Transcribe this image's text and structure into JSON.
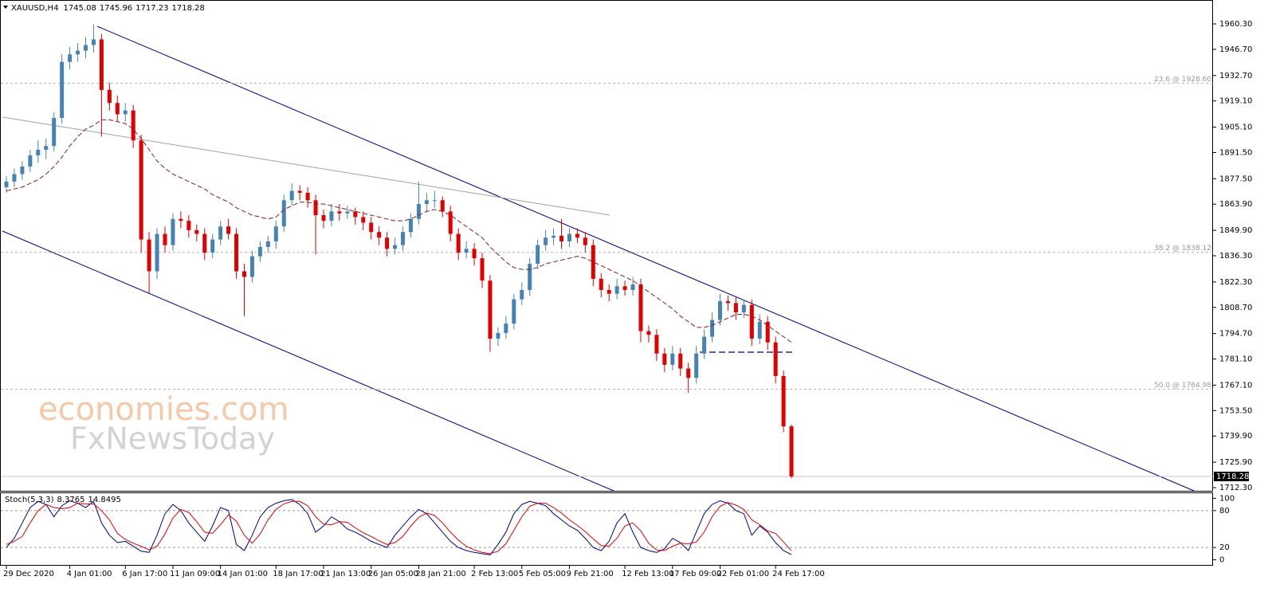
{
  "chart_data": {
    "type": "candlestick",
    "symbol": "XAUUSD,H4",
    "bull_color": "#4682b4",
    "bear_color": "#e00000",
    "categories": [
      "29 Dec 2020",
      null,
      null,
      null,
      null,
      null,
      null,
      null,
      "4 Jan 01:00",
      null,
      null,
      null,
      null,
      null,
      null,
      "6 Jan 17:00",
      null,
      null,
      null,
      null,
      null,
      "11 Jan 09:00",
      null,
      null,
      null,
      null,
      null,
      "14 Jan 01:00",
      null,
      null,
      null,
      null,
      null,
      null,
      "18 Jan 17:00",
      null,
      null,
      null,
      null,
      null,
      "21 Jan 13:00",
      null,
      null,
      null,
      null,
      null,
      "26 Jan 05:00",
      null,
      null,
      null,
      null,
      null,
      "28 Jan 21:00",
      null,
      null,
      null,
      null,
      null,
      null,
      "2 Feb 13:00",
      null,
      null,
      null,
      null,
      null,
      "5 Feb 05:00",
      null,
      null,
      null,
      null,
      null,
      "9 Feb 21:00",
      null,
      null,
      null,
      null,
      null,
      null,
      "12 Feb 13:00",
      null,
      null,
      null,
      null,
      null,
      "17 Feb 09:00",
      null,
      null,
      null,
      null,
      null,
      "22 Feb 01:00",
      null,
      null,
      null,
      null,
      null,
      null,
      "24 Feb 17:00",
      null,
      null
    ],
    "open": [
      1873,
      1876,
      1880,
      1884,
      1890,
      1893,
      1895,
      1910,
      1940,
      1944,
      1946,
      1949,
      1952,
      1925,
      1918,
      1912,
      1914,
      1898,
      1845,
      1828,
      1848,
      1842,
      1856,
      1855,
      1850,
      1848,
      1838,
      1845,
      1852,
      1848,
      1828,
      1825,
      1836,
      1841,
      1844,
      1852,
      1866,
      1871,
      1870,
      1866,
      1858,
      1855,
      1860,
      1859,
      1860,
      1857,
      1854,
      1849,
      1846,
      1840,
      1842,
      1849,
      1856,
      1864,
      1866,
      1866,
      1860,
      1848,
      1838,
      1840,
      1835,
      1823,
      1792,
      1795,
      1800,
      1813,
      1818,
      1832,
      1842,
      1846,
      1847,
      1844,
      1848,
      1846,
      1842,
      1824,
      1818,
      1816,
      1820,
      1818,
      1821,
      1796,
      1794,
      1784,
      1778,
      1784,
      1776,
      1771,
      1784,
      1793,
      1802,
      1812,
      1811,
      1806,
      1810,
      1792,
      1801,
      1790,
      1772,
      1745.08
    ],
    "high": [
      1879,
      1883,
      1887,
      1893,
      1898,
      1899,
      1913,
      1944,
      1948,
      1950,
      1953,
      1960,
      1955,
      1929,
      1922,
      1918,
      1917,
      1901,
      1849,
      1851,
      1852,
      1859,
      1860,
      1858,
      1853,
      1851,
      1848,
      1855,
      1856,
      1851,
      1832,
      1839,
      1844,
      1847,
      1855,
      1869,
      1875,
      1874,
      1873,
      1869,
      1861,
      1864,
      1864,
      1863,
      1862,
      1860,
      1857,
      1852,
      1849,
      1846,
      1852,
      1859,
      1876,
      1870,
      1871,
      1868,
      1863,
      1851,
      1844,
      1843,
      1838,
      1826,
      1798,
      1804,
      1816,
      1822,
      1835,
      1845,
      1850,
      1851,
      1856,
      1851,
      1851,
      1849,
      1845,
      1827,
      1821,
      1824,
      1823,
      1825,
      1824,
      1799,
      1797,
      1787,
      1788,
      1787,
      1779,
      1788,
      1797,
      1806,
      1816,
      1815,
      1814,
      1813,
      1813,
      1805,
      1804,
      1793,
      1775,
      1745.96
    ],
    "low": [
      1870,
      1873,
      1877,
      1881,
      1886,
      1888,
      1892,
      1907,
      1936,
      1940,
      1942,
      1945,
      1900,
      1914,
      1908,
      1908,
      1894,
      1838,
      1816,
      1824,
      1838,
      1839,
      1851,
      1846,
      1844,
      1834,
      1835,
      1842,
      1845,
      1824,
      1804,
      1822,
      1833,
      1838,
      1840,
      1849,
      1863,
      1866,
      1862,
      1837,
      1851,
      1852,
      1855,
      1856,
      1853,
      1850,
      1845,
      1842,
      1836,
      1837,
      1839,
      1846,
      1853,
      1860,
      1862,
      1857,
      1844,
      1834,
      1835,
      1831,
      1819,
      1785,
      1788,
      1792,
      1797,
      1810,
      1815,
      1829,
      1839,
      1842,
      1840,
      1841,
      1843,
      1838,
      1820,
      1814,
      1812,
      1813,
      1815,
      1815,
      1790,
      1790,
      1780,
      1774,
      1775,
      1772,
      1763,
      1768,
      1781,
      1790,
      1799,
      1807,
      1802,
      1803,
      1788,
      1789,
      1786,
      1768,
      1742,
      1717.23
    ],
    "close": [
      1876,
      1880,
      1884,
      1890,
      1893,
      1895,
      1910,
      1940,
      1944,
      1946,
      1949,
      1952,
      1925,
      1918,
      1912,
      1914,
      1898,
      1845,
      1828,
      1848,
      1842,
      1856,
      1855,
      1850,
      1848,
      1838,
      1845,
      1852,
      1848,
      1828,
      1825,
      1836,
      1841,
      1844,
      1852,
      1866,
      1871,
      1870,
      1866,
      1858,
      1855,
      1860,
      1859,
      1860,
      1857,
      1854,
      1849,
      1846,
      1840,
      1842,
      1849,
      1856,
      1864,
      1866,
      1866,
      1860,
      1848,
      1838,
      1840,
      1835,
      1823,
      1792,
      1795,
      1800,
      1813,
      1818,
      1832,
      1842,
      1846,
      1847,
      1844,
      1848,
      1846,
      1842,
      1824,
      1818,
      1816,
      1820,
      1818,
      1821,
      1796,
      1794,
      1784,
      1778,
      1784,
      1776,
      1771,
      1784,
      1793,
      1802,
      1812,
      1811,
      1806,
      1810,
      1792,
      1801,
      1790,
      1772,
      1745.08,
      1718.28
    ],
    "ma": {
      "color": "#8b1a1a",
      "values": [
        1871,
        1872,
        1873,
        1875,
        1877,
        1880,
        1884,
        1889,
        1895,
        1900,
        1904,
        1906,
        1909,
        1909,
        1908,
        1907,
        1904,
        1899,
        1893,
        1887,
        1883,
        1880,
        1878,
        1876,
        1874,
        1872,
        1869,
        1867,
        1865,
        1862,
        1860,
        1858,
        1857,
        1856,
        1857,
        1861,
        1863,
        1865,
        1865,
        1864,
        1864,
        1863,
        1862,
        1861,
        1860,
        1859,
        1858,
        1857,
        1856,
        1855,
        1855,
        1856,
        1858,
        1860,
        1861,
        1860,
        1858,
        1855,
        1852,
        1849,
        1846,
        1841,
        1837,
        1833,
        1830,
        1829,
        1829,
        1830,
        1832,
        1833,
        1834,
        1835,
        1836,
        1835,
        1833,
        1831,
        1829,
        1827,
        1825,
        1823,
        1820,
        1817,
        1814,
        1811,
        1808,
        1804,
        1801,
        1798,
        1798,
        1799,
        1801,
        1803,
        1805,
        1805,
        1804,
        1802,
        1799,
        1796,
        1793,
        1790
      ]
    },
    "ylim": [
      1710.6,
      1971.38
    ],
    "yticks": [
      {
        "value": 1960.3,
        "label": "1960.30"
      },
      {
        "value": 1946.7,
        "label": "1946.70"
      },
      {
        "value": 1932.7,
        "label": "1932.70"
      },
      {
        "value": 1919.1,
        "label": "1919.10"
      },
      {
        "value": 1905.1,
        "label": "1905.10"
      },
      {
        "value": 1891.5,
        "label": "1891.50"
      },
      {
        "value": 1877.5,
        "label": "1877.50"
      },
      {
        "value": 1863.9,
        "label": "1863.90"
      },
      {
        "value": 1849.9,
        "label": "1849.90"
      },
      {
        "value": 1836.3,
        "label": "1836.30"
      },
      {
        "value": 1822.3,
        "label": "1822.30"
      },
      {
        "value": 1808.7,
        "label": "1808.70"
      },
      {
        "value": 1794.7,
        "label": "1794.70"
      },
      {
        "value": 1781.1,
        "label": "1781.10"
      },
      {
        "value": 1767.1,
        "label": "1767.10"
      },
      {
        "value": 1753.5,
        "label": "1753.50"
      },
      {
        "value": 1739.9,
        "label": "1739.90"
      },
      {
        "value": 1725.9,
        "label": "1725.90"
      },
      {
        "value": 1712.3,
        "label": "1712.30"
      }
    ],
    "fib_levels": [
      {
        "value": 1928.6,
        "label": "23.6 @ 1928.60"
      },
      {
        "value": 1838.12,
        "label": "38.2 @ 1838.12"
      },
      {
        "value": 1764.98,
        "label": "50.0 @ 1764.98"
      }
    ],
    "stoch": {
      "name": "Stoch(5,3,3)",
      "ylim": [
        -7,
        107
      ],
      "yticks": [
        100,
        80,
        20,
        0
      ],
      "levels": [
        80,
        20
      ],
      "series": [
        {
          "color": "#000080",
          "values": [
            20,
            35,
            60,
            85,
            95,
            90,
            70,
            88,
            96,
            92,
            85,
            95,
            60,
            40,
            28,
            30,
            22,
            14,
            12,
            40,
            75,
            90,
            80,
            60,
            45,
            30,
            55,
            85,
            80,
            25,
            15,
            40,
            70,
            85,
            92,
            96,
            98,
            90,
            75,
            45,
            55,
            70,
            62,
            50,
            45,
            38,
            30,
            25,
            20,
            40,
            55,
            70,
            82,
            75,
            60,
            45,
            30,
            20,
            15,
            12,
            10,
            8,
            25,
            45,
            75,
            90,
            95,
            92,
            88,
            75,
            65,
            55,
            48,
            35,
            20,
            15,
            30,
            60,
            75,
            45,
            20,
            15,
            12,
            18,
            35,
            28,
            15,
            45,
            75,
            90,
            96,
            92,
            80,
            75,
            40,
            55,
            45,
            28,
            15,
            8.3765
          ]
        },
        {
          "color": "#e00000",
          "values": [
            25,
            30,
            38,
            60,
            80,
            90,
            85,
            83,
            85,
            92,
            91,
            91,
            80,
            65,
            43,
            33,
            27,
            22,
            16,
            22,
            42,
            68,
            82,
            77,
            62,
            45,
            43,
            57,
            73,
            63,
            40,
            27,
            42,
            65,
            82,
            91,
            95,
            95,
            88,
            70,
            58,
            57,
            62,
            61,
            52,
            44,
            38,
            31,
            25,
            28,
            38,
            55,
            69,
            76,
            72,
            60,
            45,
            32,
            22,
            16,
            12,
            10,
            14,
            26,
            48,
            70,
            87,
            92,
            92,
            85,
            76,
            65,
            56,
            46,
            34,
            23,
            22,
            35,
            55,
            60,
            47,
            27,
            16,
            15,
            22,
            27,
            26,
            29,
            45,
            70,
            87,
            93,
            89,
            82,
            65,
            57,
            47,
            43,
            29,
            14.8495
          ]
        }
      ]
    },
    "watermark": {
      "line1": "economies.com",
      "line2": "FxNewsToday"
    }
  }
}
